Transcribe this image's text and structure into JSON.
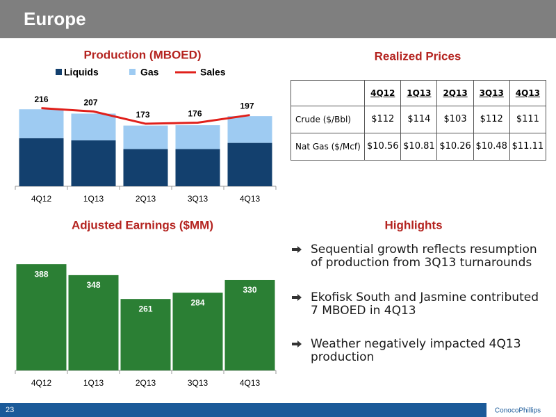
{
  "header": {
    "title": "Europe"
  },
  "chart_data": [
    {
      "type": "stacked-bar-line",
      "title": "Production (MBOED)",
      "categories": [
        "4Q12",
        "1Q13",
        "2Q13",
        "3Q13",
        "4Q13"
      ],
      "series": [
        {
          "name": "Liquids",
          "color": "#13406e",
          "values": [
            133,
            127,
            103,
            103,
            120
          ]
        },
        {
          "name": "Gas",
          "color": "#9ecbf2",
          "values": [
            80,
            74,
            65,
            66,
            74
          ]
        },
        {
          "name": "Sales",
          "color": "#e0201b",
          "type": "line",
          "values": [
            216,
            207,
            173,
            176,
            197
          ]
        }
      ]
    },
    {
      "type": "bar",
      "title": "Adjusted Earnings ($MM)",
      "categories": [
        "4Q12",
        "1Q13",
        "2Q13",
        "3Q13",
        "4Q13"
      ],
      "values": [
        388,
        348,
        261,
        284,
        330
      ],
      "color": "#2b7f34"
    }
  ],
  "table": {
    "title": "Realized Prices",
    "header": [
      "4Q12",
      "1Q13",
      "2Q13",
      "3Q13",
      "4Q13"
    ],
    "rows": [
      [
        "Crude ($/Bbl)",
        "$112",
        "$114",
        "$103",
        "$112",
        "$111"
      ],
      [
        "Nat Gas ($/Mcf)",
        "$10.56",
        "$10.81",
        "$10.26",
        "$10.48",
        "$11.11"
      ]
    ]
  },
  "highlights": {
    "title": "Highlights",
    "items": [
      "Sequential growth reflects resumption of production from 3Q13 turnarounds",
      "Ekofisk South and Jasmine contributed 7 MBOED in 4Q13",
      "Weather negatively impacted 4Q13 production"
    ]
  },
  "footer": {
    "page": "23",
    "logo": "ConocoPhillips"
  }
}
